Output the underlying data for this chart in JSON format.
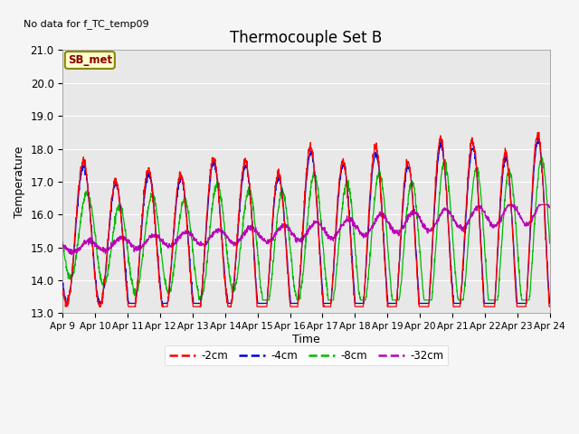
{
  "title": "Thermocouple Set B",
  "no_data_label": "No data for f_TC_temp09",
  "ylabel": "Temperature",
  "xlabel": "Time",
  "ylim": [
    13.0,
    21.0
  ],
  "yticks": [
    13.0,
    14.0,
    15.0,
    16.0,
    17.0,
    18.0,
    19.0,
    20.0,
    21.0
  ],
  "xtick_labels": [
    "Apr 9",
    "Apr 10",
    "Apr 11",
    "Apr 12",
    "Apr 13",
    "Apr 14",
    "Apr 15",
    "Apr 16",
    "Apr 17",
    "Apr 18",
    "Apr 19",
    "Apr 20",
    "Apr 21",
    "Apr 22",
    "Apr 23",
    "Apr 24"
  ],
  "legend_entries": [
    "-2cm",
    "-4cm",
    "-8cm",
    "-32cm"
  ],
  "legend_colors": [
    "#ff0000",
    "#0000dd",
    "#00bb00",
    "#bb00bb"
  ],
  "sb_met_label": "SB_met",
  "plot_bg_color": "#e8e8e8",
  "fig_bg_color": "#f5f5f5",
  "grid_color": "#ffffff",
  "line_colors": {
    "-2cm": "#ff0000",
    "-4cm": "#0000dd",
    "-8cm": "#00bb00",
    "-32cm": "#bb00bb"
  }
}
